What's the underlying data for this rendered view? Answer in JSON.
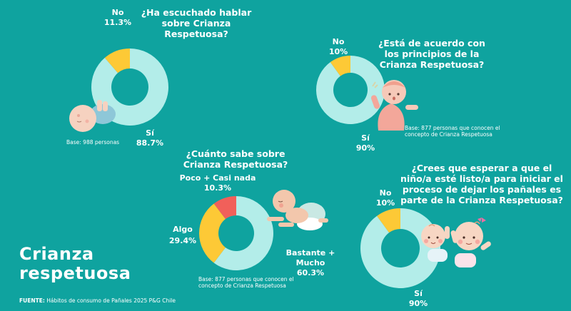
{
  "page": {
    "title_line1": "Crianza",
    "title_line2": "respetuosa",
    "source_label": "FUENTE:",
    "source_text": " Hábitos de consumo de Pañales 2025 P&G Chile",
    "colors": {
      "background": "#0fa39f",
      "light": "#b3ede9",
      "yellow": "#fdc936",
      "red": "#f1605a"
    }
  },
  "chart_data": [
    {
      "type": "pie",
      "variant": "donut",
      "title": "¿Ha escuchado hablar sobre Crianza Respetuosa?",
      "title_lines": [
        "¿Ha escuchado hablar",
        "sobre Crianza",
        "Respetuosa?"
      ],
      "categories": [
        "Sí",
        "No"
      ],
      "values": [
        88.7,
        11.3
      ],
      "value_labels": [
        "88.7%",
        "11.3%"
      ],
      "colors": [
        "#b3ede9",
        "#fdc936"
      ],
      "base_note": [
        "Base: 988 personas"
      ]
    },
    {
      "type": "pie",
      "variant": "donut",
      "title": "¿Está de acuerdo con los principios de la Crianza Respetuosa?",
      "title_lines": [
        "¿Está de acuerdo con",
        "los principios de la",
        "Crianza Respetuosa?"
      ],
      "categories": [
        "Sí",
        "No"
      ],
      "values": [
        90,
        10
      ],
      "value_labels": [
        "90%",
        "10%"
      ],
      "colors": [
        "#b3ede9",
        "#fdc936"
      ],
      "base_note": [
        "Base: 877 personas que conocen el",
        "concepto de Crianza Respetuosa"
      ]
    },
    {
      "type": "pie",
      "variant": "donut",
      "title": "¿Cuánto sabe sobre Crianza Respetuosa?",
      "title_lines": [
        "¿Cuánto sabe sobre",
        "Crianza Respetuosa?"
      ],
      "categories": [
        "Bastante + Mucho",
        "Algo",
        "Poco + Casi nada"
      ],
      "values": [
        60.3,
        29.4,
        10.3
      ],
      "value_labels": [
        "60.3%",
        "29.4%",
        "10.3%"
      ],
      "colors": [
        "#b3ede9",
        "#fdc936",
        "#f1605a"
      ],
      "base_note": [
        "Base: 877 personas que conocen el",
        "concepto de Crianza Respetuosa"
      ]
    },
    {
      "type": "pie",
      "variant": "donut",
      "title": "¿Crees que esperar a que el niño/a esté listo/a para iniciar el proceso de dejar los pañales es parte de la Crianza Respetuosa?",
      "title_lines": [
        "¿Crees que esperar a que el",
        "niño/a esté listo/a para iniciar el",
        "proceso de dejar los pañales es",
        "parte de la Crianza Respetuosa?"
      ],
      "categories": [
        "Sí",
        "No"
      ],
      "values": [
        90,
        10
      ],
      "value_labels": [
        "90%",
        "10%"
      ],
      "colors": [
        "#b3ede9",
        "#fdc936"
      ],
      "base_note": []
    }
  ]
}
